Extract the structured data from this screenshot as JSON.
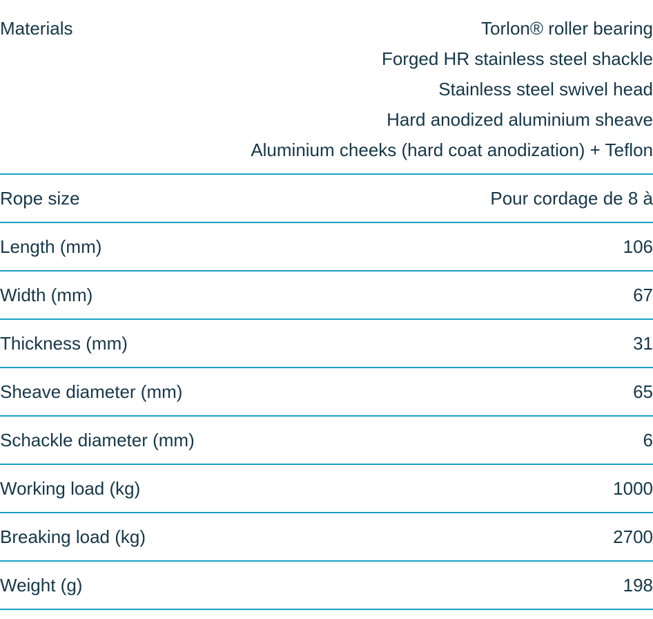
{
  "page": {
    "background": "#ffffff",
    "text_color": "#163748",
    "divider_color": "#1aa0c5"
  },
  "spec_table": {
    "rows": [
      {
        "label": "Materials",
        "values": [
          "Torlon® roller bearing",
          "Forged HR stainless steel shackle",
          "Stainless steel swivel head",
          "Hard anodized aluminium sheave",
          "Aluminium cheeks (hard coat anodization) + Teflon"
        ]
      },
      {
        "label": "Rope size",
        "values": [
          "Pour cordage de 8 à"
        ]
      },
      {
        "label": "Length (mm)",
        "values": [
          "106"
        ]
      },
      {
        "label": "Width (mm)",
        "values": [
          "67"
        ]
      },
      {
        "label": "Thickness (mm)",
        "values": [
          "31"
        ]
      },
      {
        "label": "Sheave diameter (mm)",
        "values": [
          "65"
        ]
      },
      {
        "label": "Schackle diameter (mm)",
        "values": [
          "6"
        ]
      },
      {
        "label": "Working load (kg)",
        "values": [
          "1000"
        ]
      },
      {
        "label": "Breaking load (kg)",
        "values": [
          "2700"
        ]
      },
      {
        "label": "Weight (g)",
        "values": [
          "198"
        ]
      }
    ]
  }
}
